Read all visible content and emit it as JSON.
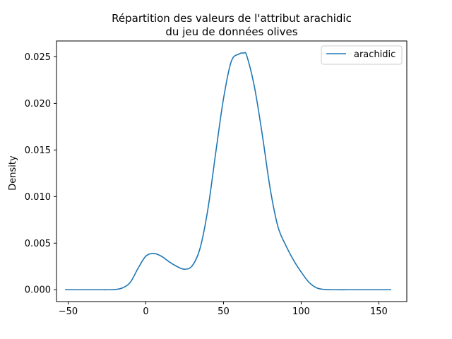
{
  "chart_data": {
    "type": "line",
    "title": "Répartition des valeurs de l'attribut arachidic",
    "subtitle": "du jeu de données olives",
    "xlabel": "",
    "ylabel": "Density",
    "xlim": [
      -57.5,
      168
    ],
    "ylim": [
      -0.00127,
      0.0267
    ],
    "xticks": [
      -50,
      0,
      50,
      100,
      150
    ],
    "xtick_labels": [
      "−50",
      "0",
      "50",
      "100",
      "150"
    ],
    "yticks": [
      0.0,
      0.005,
      0.01,
      0.015,
      0.02,
      0.025
    ],
    "ytick_labels": [
      "0.000",
      "0.005",
      "0.010",
      "0.015",
      "0.020",
      "0.025"
    ],
    "grid": false,
    "legend": "top-right",
    "series": [
      {
        "name": "arachidic",
        "color": "#1f77b4",
        "x": [
          -52,
          -40,
          -30,
          -25,
          -20,
          -15,
          -10,
          -5,
          0,
          5,
          10,
          15,
          20,
          25,
          30,
          35,
          40,
          45,
          50,
          55,
          60,
          63,
          65,
          70,
          75,
          80,
          85,
          90,
          95,
          100,
          105,
          110,
          115,
          120,
          130,
          140,
          158
        ],
        "y": [
          0.0,
          0.0,
          0.0,
          0.0,
          2e-05,
          0.0002,
          0.0008,
          0.0023,
          0.0036,
          0.0039,
          0.0036,
          0.003,
          0.0025,
          0.0022,
          0.0026,
          0.0045,
          0.0087,
          0.0147,
          0.0205,
          0.0245,
          0.0253,
          0.0254,
          0.0251,
          0.0217,
          0.0166,
          0.0109,
          0.0068,
          0.0048,
          0.0032,
          0.0019,
          0.0008,
          0.0002,
          3e-05,
          0.0,
          0.0,
          0.0,
          0.0
        ]
      }
    ]
  }
}
